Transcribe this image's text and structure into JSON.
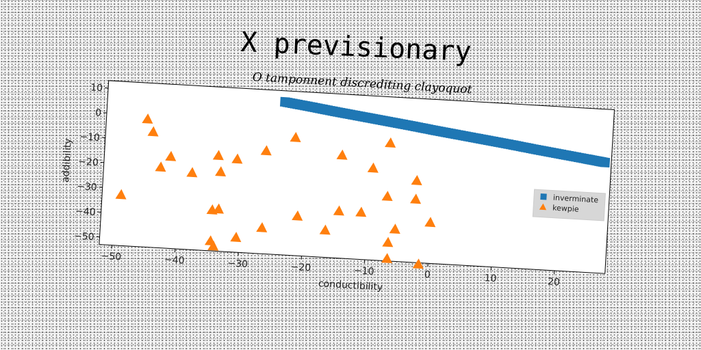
{
  "title": "X previsionary",
  "chart_data": {
    "type": "scatter",
    "subtitle": "O tamponnent discrediting clayoquot",
    "xlabel": "conductibility",
    "ylabel": "addibility",
    "xlim": [
      -52,
      28
    ],
    "ylim": [
      -53,
      13
    ],
    "xticks": [
      -50,
      -40,
      -30,
      -20,
      -10,
      0,
      10,
      20
    ],
    "yticks": [
      10,
      0,
      -10,
      -20,
      -30,
      -40,
      -50
    ],
    "grid": false,
    "legend_placement": "center-right",
    "series": [
      {
        "name": "inverminate",
        "marker": "square",
        "color": "#1f77b4",
        "x": [
          -24,
          -20,
          -16,
          -12,
          -8,
          -4,
          0,
          4,
          8,
          12,
          16,
          20,
          24,
          27
        ],
        "y": [
          8.5,
          7.2,
          5.8,
          4.5,
          3.2,
          1.9,
          0.5,
          -0.8,
          -2.1,
          -3.4,
          -4.8,
          -6.1,
          -7.4,
          -8.4
        ]
      },
      {
        "name": "kewpie",
        "marker": "triangle",
        "color": "#ff7f0e",
        "x": [
          -45.5,
          -44.5,
          -49,
          -43,
          -41.5,
          -38,
          -34,
          -33.5,
          -33.5,
          -31,
          -34.5,
          -34,
          -34.5,
          -30.5,
          -26.5,
          -26.5,
          -22,
          -21,
          -16.5,
          -14.5,
          -14.5,
          -11,
          -9.5,
          -7,
          -7,
          -6.5,
          -6.5,
          -5.5,
          -2.5,
          -2.5,
          -1.5,
          0
        ],
        "y": [
          -1.5,
          -6.5,
          -32.5,
          -20.5,
          -16,
          -22,
          -14.5,
          -21,
          -36,
          -15.5,
          -36.5,
          -51,
          -49,
          -47,
          -11.5,
          -42.5,
          -5.5,
          -37,
          -42,
          -11.5,
          -34,
          -34,
          -16,
          -5.5,
          -27,
          -45.5,
          -52,
          -40,
          -27.5,
          -20,
          -53.5,
          -36.5
        ]
      }
    ]
  }
}
